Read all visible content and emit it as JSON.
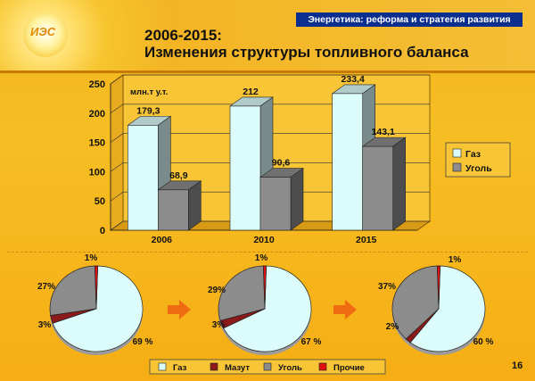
{
  "header": {
    "banner": "Энергетика: реформа и стратегия развития",
    "title_line1": "2006-2015:",
    "title_line2": "Изменения структуры топливного баланса",
    "logo_text": "ИЭС",
    "page_number": "16"
  },
  "chart_data": [
    {
      "type": "bar",
      "title": "",
      "ylabel": "млн.т у.т.",
      "categories": [
        "2006",
        "2010",
        "2015"
      ],
      "ylim": [
        0,
        250
      ],
      "yticks": [
        0,
        50,
        100,
        150,
        200,
        250
      ],
      "series": [
        {
          "name": "Газ",
          "values": [
            179.3,
            212,
            233.4
          ],
          "labels": [
            "179,3",
            "212",
            "233,4"
          ]
        },
        {
          "name": "Уголь",
          "values": [
            68.9,
            90.6,
            143.1
          ],
          "labels": [
            "68,9",
            "90,6",
            "143,1"
          ]
        }
      ],
      "grid": true,
      "legend": "right",
      "colors": {
        "Газ": "#dcfcfc",
        "Уголь": "#8c8c8c"
      }
    },
    {
      "type": "pie",
      "categories": [
        "Газ",
        "Мазут",
        "Уголь",
        "Прочие"
      ],
      "values": [
        69,
        3,
        27,
        1
      ],
      "labels": [
        "69 %",
        "3%",
        "27%",
        "1%"
      ]
    },
    {
      "type": "pie",
      "categories": [
        "Газ",
        "Мазут",
        "Уголь",
        "Прочие"
      ],
      "values": [
        67,
        3,
        29,
        1
      ],
      "labels": [
        "67 %",
        "3%",
        "29%",
        "1%"
      ]
    },
    {
      "type": "pie",
      "categories": [
        "Газ",
        "Мазут",
        "Уголь",
        "Прочие"
      ],
      "values": [
        60,
        2,
        37,
        1
      ],
      "labels": [
        "60 %",
        "2%",
        "37%",
        "1%"
      ]
    }
  ],
  "pie_legend": [
    {
      "name": "Газ",
      "color": "#dcfcfc"
    },
    {
      "name": "Мазут",
      "color": "#8b1a1a"
    },
    {
      "name": "Уголь",
      "color": "#8c8c8c"
    },
    {
      "name": "Прочие",
      "color": "#e01010"
    }
  ],
  "colors": {
    "accent_banner": "#0b2f8f",
    "arrow": "#f06a12"
  }
}
